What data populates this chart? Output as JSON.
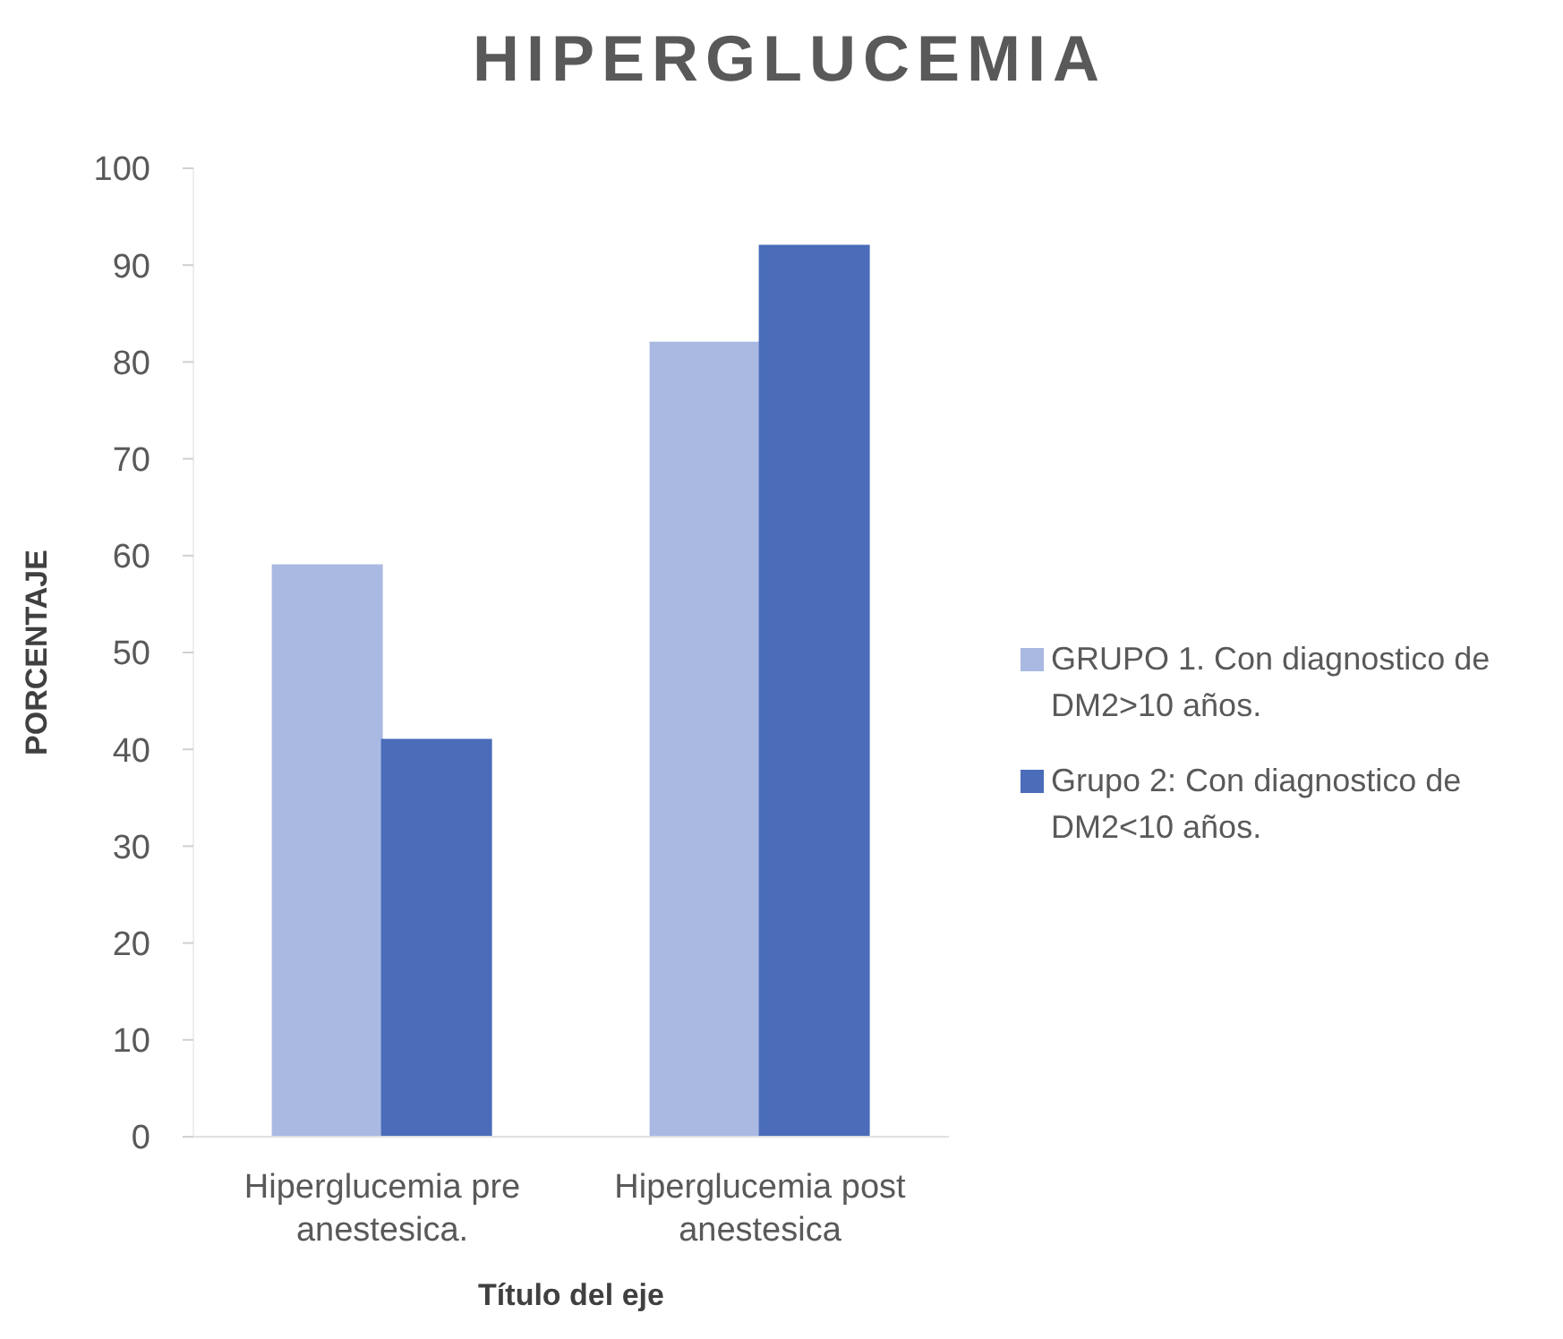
{
  "chart_data": {
    "type": "bar",
    "title": "HIPERGLUCEMIA",
    "xlabel": "Título del eje",
    "ylabel": "PORCENTAJE",
    "categories": [
      "Hiperglucemia pre anestesica.",
      "Hiperglucemia post anestesica"
    ],
    "series": [
      {
        "name": "GRUPO 1. Con diagnostico de DM2>10 años.",
        "color": "#a9b9e2",
        "values": [
          59,
          82
        ]
      },
      {
        "name": "Grupo 2: Con diagnostico de DM2<10 años.",
        "color": "#4a6cb9",
        "values": [
          41,
          92
        ]
      }
    ],
    "ylim": [
      0,
      100
    ],
    "yticks": [
      0,
      10,
      20,
      30,
      40,
      50,
      60,
      70,
      80,
      90,
      100
    ],
    "grid": false,
    "legend": "right"
  }
}
